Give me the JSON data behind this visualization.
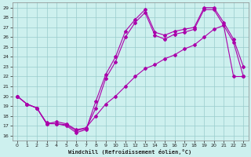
{
  "xlabel": "Windchill (Refroidissement éolien,°C)",
  "background_color": "#cdf0ee",
  "grid_color": "#aadddd",
  "line_color": "#aa00aa",
  "xlim": [
    -0.5,
    23.5
  ],
  "ylim": [
    15.5,
    29.5
  ],
  "yticks": [
    16,
    17,
    18,
    19,
    20,
    21,
    22,
    23,
    24,
    25,
    26,
    27,
    28,
    29
  ],
  "xticks": [
    0,
    1,
    2,
    3,
    4,
    5,
    6,
    7,
    8,
    9,
    10,
    11,
    12,
    13,
    14,
    15,
    16,
    17,
    18,
    19,
    20,
    21,
    22,
    23
  ],
  "line1_x": [
    0,
    1,
    2,
    3,
    4,
    5,
    6,
    7,
    8,
    9,
    10,
    11,
    12,
    13,
    14,
    15,
    16,
    17,
    18,
    19,
    20,
    21,
    22,
    23
  ],
  "line1_y": [
    20.0,
    19.2,
    18.8,
    17.2,
    17.2,
    17.0,
    16.3,
    16.6,
    19.5,
    22.2,
    24.0,
    26.6,
    27.8,
    28.8,
    26.5,
    26.2,
    26.6,
    26.8,
    27.0,
    29.0,
    29.0,
    27.5,
    25.8,
    23.0
  ],
  "line2_x": [
    0,
    1,
    2,
    3,
    4,
    5,
    6,
    7,
    8,
    9,
    10,
    11,
    12,
    13,
    14,
    15,
    16,
    17,
    18,
    19,
    20,
    21,
    22,
    23
  ],
  "line2_y": [
    20.0,
    19.2,
    18.8,
    17.3,
    17.2,
    17.1,
    16.5,
    16.7,
    18.8,
    21.8,
    23.5,
    26.0,
    27.5,
    28.5,
    26.2,
    25.8,
    26.3,
    26.5,
    26.8,
    28.8,
    28.8,
    27.2,
    25.5,
    22.0
  ],
  "line3_x": [
    0,
    1,
    2,
    3,
    4,
    5,
    6,
    7,
    8,
    9,
    10,
    11,
    12,
    13,
    14,
    15,
    16,
    17,
    18,
    19,
    20,
    21,
    22,
    23
  ],
  "line3_y": [
    20.0,
    19.2,
    18.8,
    17.2,
    17.4,
    17.2,
    16.6,
    16.8,
    18.0,
    19.2,
    20.0,
    21.0,
    22.0,
    22.8,
    23.2,
    23.8,
    24.2,
    24.8,
    25.2,
    26.0,
    26.8,
    27.2,
    22.0,
    22.0
  ]
}
